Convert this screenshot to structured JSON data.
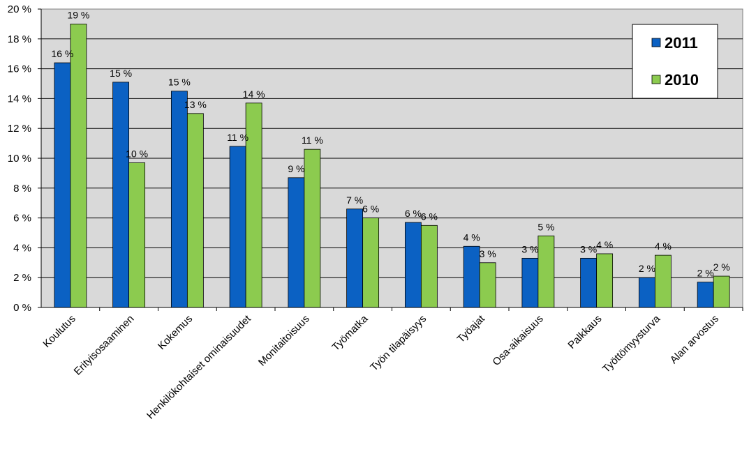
{
  "chart_data": {
    "type": "bar",
    "categories": [
      "Koulutus",
      "Erityisosaaminen",
      "Kokemus",
      "Henkilökohtaiset ominaisuudet",
      "Monitaitoisuus",
      "Työmatka",
      "Työn tilapäisyys",
      "Työajat",
      "Osa-aikaisuus",
      "Palkkaus",
      "Työttömyysturva",
      "Alan arvostus"
    ],
    "series": [
      {
        "name": "2011",
        "values": [
          16.4,
          15.1,
          14.5,
          10.8,
          8.7,
          6.6,
          5.7,
          4.1,
          3.3,
          3.3,
          2.0,
          1.7
        ],
        "labels": [
          "16 %",
          "15 %",
          "15 %",
          "11 %",
          "9 %",
          "7 %",
          "6 %",
          "4 %",
          "3 %",
          "3 %",
          "2 %",
          "2 %"
        ],
        "color": "#0B61C3"
      },
      {
        "name": "2010",
        "values": [
          19.0,
          9.7,
          13.0,
          13.7,
          10.6,
          6.0,
          5.5,
          3.0,
          4.8,
          3.6,
          3.5,
          2.1
        ],
        "labels": [
          "19 %",
          "10 %",
          "13 %",
          "14 %",
          "11 %",
          "6 %",
          "6 %",
          "3 %",
          "5 %",
          "4 %",
          "4 %",
          "2 %"
        ],
        "color": "#8CCB4F"
      }
    ],
    "y_ticks": [
      "0 %",
      "2 %",
      "4 %",
      "6 %",
      "8 %",
      "10 %",
      "12 %",
      "14 %",
      "16 %",
      "18 %",
      "20 %"
    ],
    "ylim": [
      0,
      20
    ],
    "grid": true,
    "legend": "top-right",
    "plot_background": "#D9D9D9",
    "title": "",
    "xlabel": "",
    "ylabel": ""
  }
}
